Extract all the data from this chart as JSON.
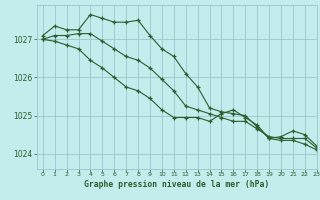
{
  "title": "Graphe pression niveau de la mer (hPa)",
  "bg_color": "#c4eced",
  "grid_color": "#96c8cc",
  "line_color": "#2d5c2d",
  "xlim": [
    -0.5,
    23
  ],
  "ylim": [
    1023.6,
    1027.9
  ],
  "yticks": [
    1024,
    1025,
    1026,
    1027
  ],
  "xticks": [
    0,
    1,
    2,
    3,
    4,
    5,
    6,
    7,
    8,
    9,
    10,
    11,
    12,
    13,
    14,
    15,
    16,
    17,
    18,
    19,
    20,
    21,
    22,
    23
  ],
  "series": [
    [
      1027.1,
      1027.35,
      1027.25,
      1027.25,
      1027.65,
      1027.55,
      1027.45,
      1027.45,
      1027.5,
      1027.1,
      1026.75,
      1026.55,
      1026.1,
      1025.75,
      1025.2,
      1025.1,
      1025.05,
      1025.0,
      1024.7,
      1024.4,
      1024.45,
      1024.6,
      1024.5,
      1024.2
    ],
    [
      1027.0,
      1027.1,
      1027.1,
      1027.15,
      1027.15,
      1026.95,
      1026.75,
      1026.55,
      1026.45,
      1026.25,
      1025.95,
      1025.65,
      1025.25,
      1025.15,
      1025.05,
      1024.95,
      1024.85,
      1024.85,
      1024.65,
      1024.45,
      1024.4,
      1024.4,
      1024.4,
      1024.15
    ],
    [
      1027.0,
      1026.95,
      1026.85,
      1026.75,
      1026.45,
      1026.25,
      1026.0,
      1025.75,
      1025.65,
      1025.45,
      1025.15,
      1024.95,
      1024.95,
      1024.95,
      1024.85,
      1025.05,
      1025.15,
      1024.95,
      1024.75,
      1024.4,
      1024.35,
      1024.35,
      1024.25,
      1024.1
    ]
  ]
}
